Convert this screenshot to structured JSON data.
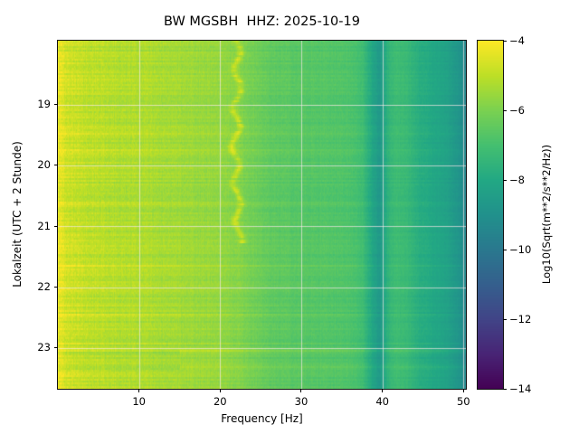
{
  "figure": {
    "title": "BW MGSBH  HHZ: 2025-10-19",
    "xlabel": "Frequency [Hz]",
    "ylabel": "Lokalzeit (UTC + 2 Stunde)",
    "colorbar_label": "Log10(Sqrt(m**2/s**2/Hz))"
  },
  "chart_data": {
    "type": "heatmap",
    "subtype": "spectrogram",
    "title": "BW MGSBH  HHZ: 2025-10-19",
    "station": "BW MGSBH",
    "channel": "HHZ",
    "date": "2025-10-19",
    "xlabel": "Frequency [Hz]",
    "ylabel": "Lokalzeit (UTC + 2 Stunde)",
    "x_range_hz": [
      0,
      50.3
    ],
    "y_range_hours": [
      17.95,
      23.67
    ],
    "grid": true,
    "gridline_color": "rgba(255,235,235,0.65)",
    "x_axis": {
      "ticks": [
        {
          "value": 10,
          "label": "10"
        },
        {
          "value": 20,
          "label": "20"
        },
        {
          "value": 30,
          "label": "30"
        },
        {
          "value": 40,
          "label": "40"
        },
        {
          "value": 50,
          "label": "50"
        }
      ]
    },
    "y_axis": {
      "ticks": [
        {
          "value": 19,
          "label": "19"
        },
        {
          "value": 20,
          "label": "20"
        },
        {
          "value": 21,
          "label": "21"
        },
        {
          "value": 22,
          "label": "22"
        },
        {
          "value": 23,
          "label": "23"
        }
      ]
    },
    "colorbar": {
      "label": "Log10(Sqrt(m**2/s**2/Hz))",
      "vmin": -14,
      "vmax": -4,
      "position": "right",
      "ticks": [
        {
          "value": -4,
          "label": "−4"
        },
        {
          "value": -6,
          "label": "−6"
        },
        {
          "value": -8,
          "label": "−8"
        },
        {
          "value": -10,
          "label": "−10"
        },
        {
          "value": -12,
          "label": "−12"
        },
        {
          "value": -14,
          "label": "−14"
        }
      ]
    },
    "colormap": {
      "name": "viridis",
      "stops": [
        [
          0.0,
          "#440154"
        ],
        [
          0.1,
          "#482475"
        ],
        [
          0.2,
          "#414487"
        ],
        [
          0.3,
          "#355f8d"
        ],
        [
          0.4,
          "#2a788e"
        ],
        [
          0.5,
          "#21918c"
        ],
        [
          0.6,
          "#22a884"
        ],
        [
          0.7,
          "#44bf70"
        ],
        [
          0.8,
          "#7ad151"
        ],
        [
          0.9,
          "#bddf26"
        ],
        [
          1.0,
          "#fde725"
        ]
      ]
    },
    "spectral_profile": {
      "comment": "mean Log10(Sqrt(m**2/s**2/Hz)) vs frequency read from the image",
      "freq_hz": [
        0,
        0.6,
        1.2,
        2.5,
        4,
        6,
        9,
        12,
        15,
        18,
        20,
        22,
        24,
        26,
        29,
        33,
        36,
        37.5,
        38.6,
        39.6,
        40.6,
        41.5,
        43,
        44.5,
        46,
        48,
        49.5,
        50.3
      ],
      "log10_amp": [
        -4.35,
        -4.55,
        -4.75,
        -4.9,
        -5.0,
        -5.1,
        -5.2,
        -5.3,
        -5.45,
        -5.55,
        -5.65,
        -5.85,
        -6.15,
        -6.45,
        -6.6,
        -6.7,
        -6.8,
        -7.1,
        -8.0,
        -8.7,
        -7.6,
        -7.15,
        -7.3,
        -7.8,
        -8.0,
        -8.3,
        -8.9,
        -9.5
      ]
    },
    "features": {
      "dark_band_hz": 39.6,
      "dark_band_note": "persistent low-power band near 38.5-40.5 Hz",
      "bright_line": {
        "freq_hz": 22.0,
        "time_span_hours": [
          17.95,
          21.25
        ],
        "wiggle_hz": 0.45,
        "amplitude": 1.0
      },
      "bright_rows_hours": [
        23.05,
        23.3
      ],
      "texture": {
        "row_noise": 0.55,
        "cell_noise": 0.5,
        "col_noise": 0.14,
        "low_freq_atten_hz": 30
      }
    }
  }
}
